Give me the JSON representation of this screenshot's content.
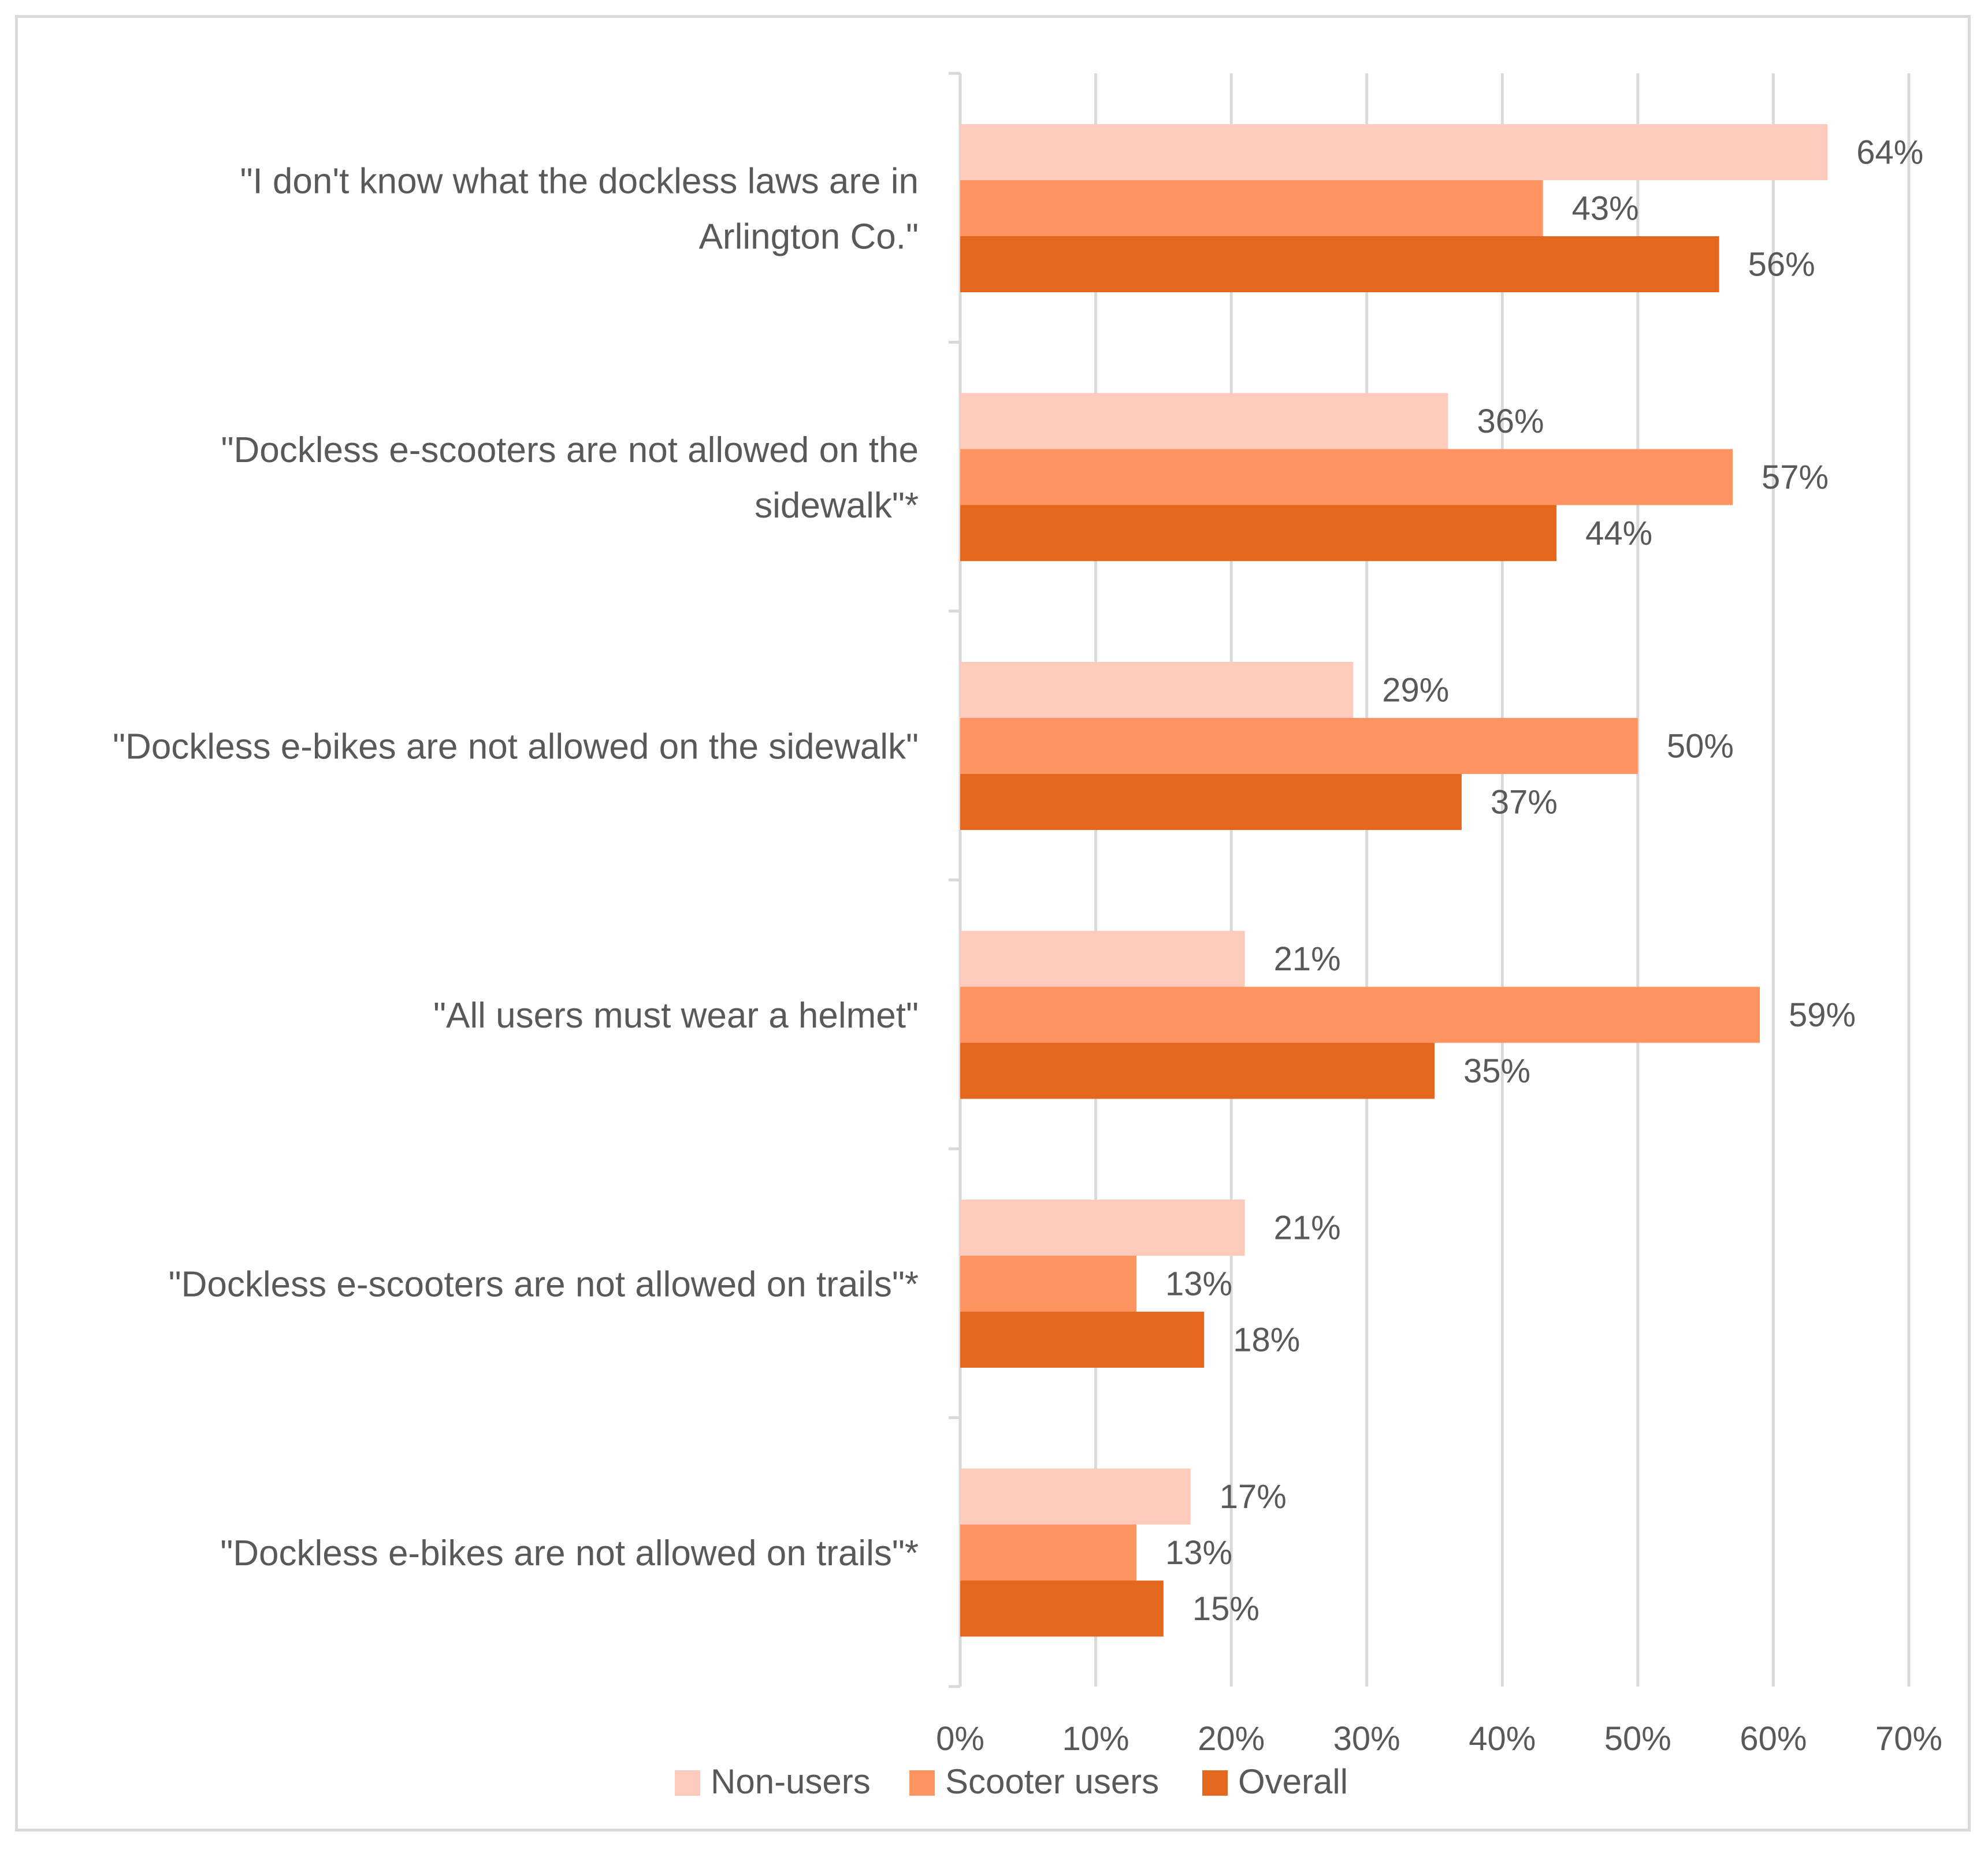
{
  "chart_data": {
    "type": "bar",
    "orientation": "horizontal",
    "categories": [
      [
        "\"I don't know what the dockless laws are in",
        "Arlington Co.\""
      ],
      [
        "\"Dockless e-scooters are not allowed on the",
        "sidewalk\"*"
      ],
      [
        "\"Dockless e-bikes are not allowed on the sidewalk\""
      ],
      [
        "\"All users must wear a helmet\""
      ],
      [
        "\"Dockless e-scooters are not allowed on trails\"*"
      ],
      [
        "\"Dockless e-bikes are not allowed on trails\"*"
      ]
    ],
    "series": [
      {
        "name": "Non-users",
        "color": "#fccbbb",
        "values": [
          64,
          36,
          29,
          21,
          21,
          17
        ],
        "labels": [
          "64%",
          "36%",
          "29%",
          "21%",
          "21%",
          "17%"
        ]
      },
      {
        "name": "Scooter users",
        "color": "#ff9460",
        "values": [
          43,
          57,
          50,
          59,
          13,
          13
        ],
        "labels": [
          "43%",
          "57%",
          "50%",
          "59%",
          "13%",
          "13%"
        ]
      },
      {
        "name": "Overall",
        "color": "#e5661d",
        "values": [
          56,
          44,
          37,
          35,
          18,
          15
        ],
        "labels": [
          "56%",
          "44%",
          "37%",
          "35%",
          "18%",
          "15%"
        ]
      }
    ],
    "xlim": [
      0,
      70
    ],
    "xticks": [
      0,
      10,
      20,
      30,
      40,
      50,
      60,
      70
    ],
    "xtick_labels": [
      "0%",
      "10%",
      "20%",
      "30%",
      "40%",
      "50%",
      "60%",
      "70%"
    ],
    "grid": true,
    "legend_position": "bottom",
    "title": "",
    "xlabel": "",
    "ylabel": ""
  }
}
